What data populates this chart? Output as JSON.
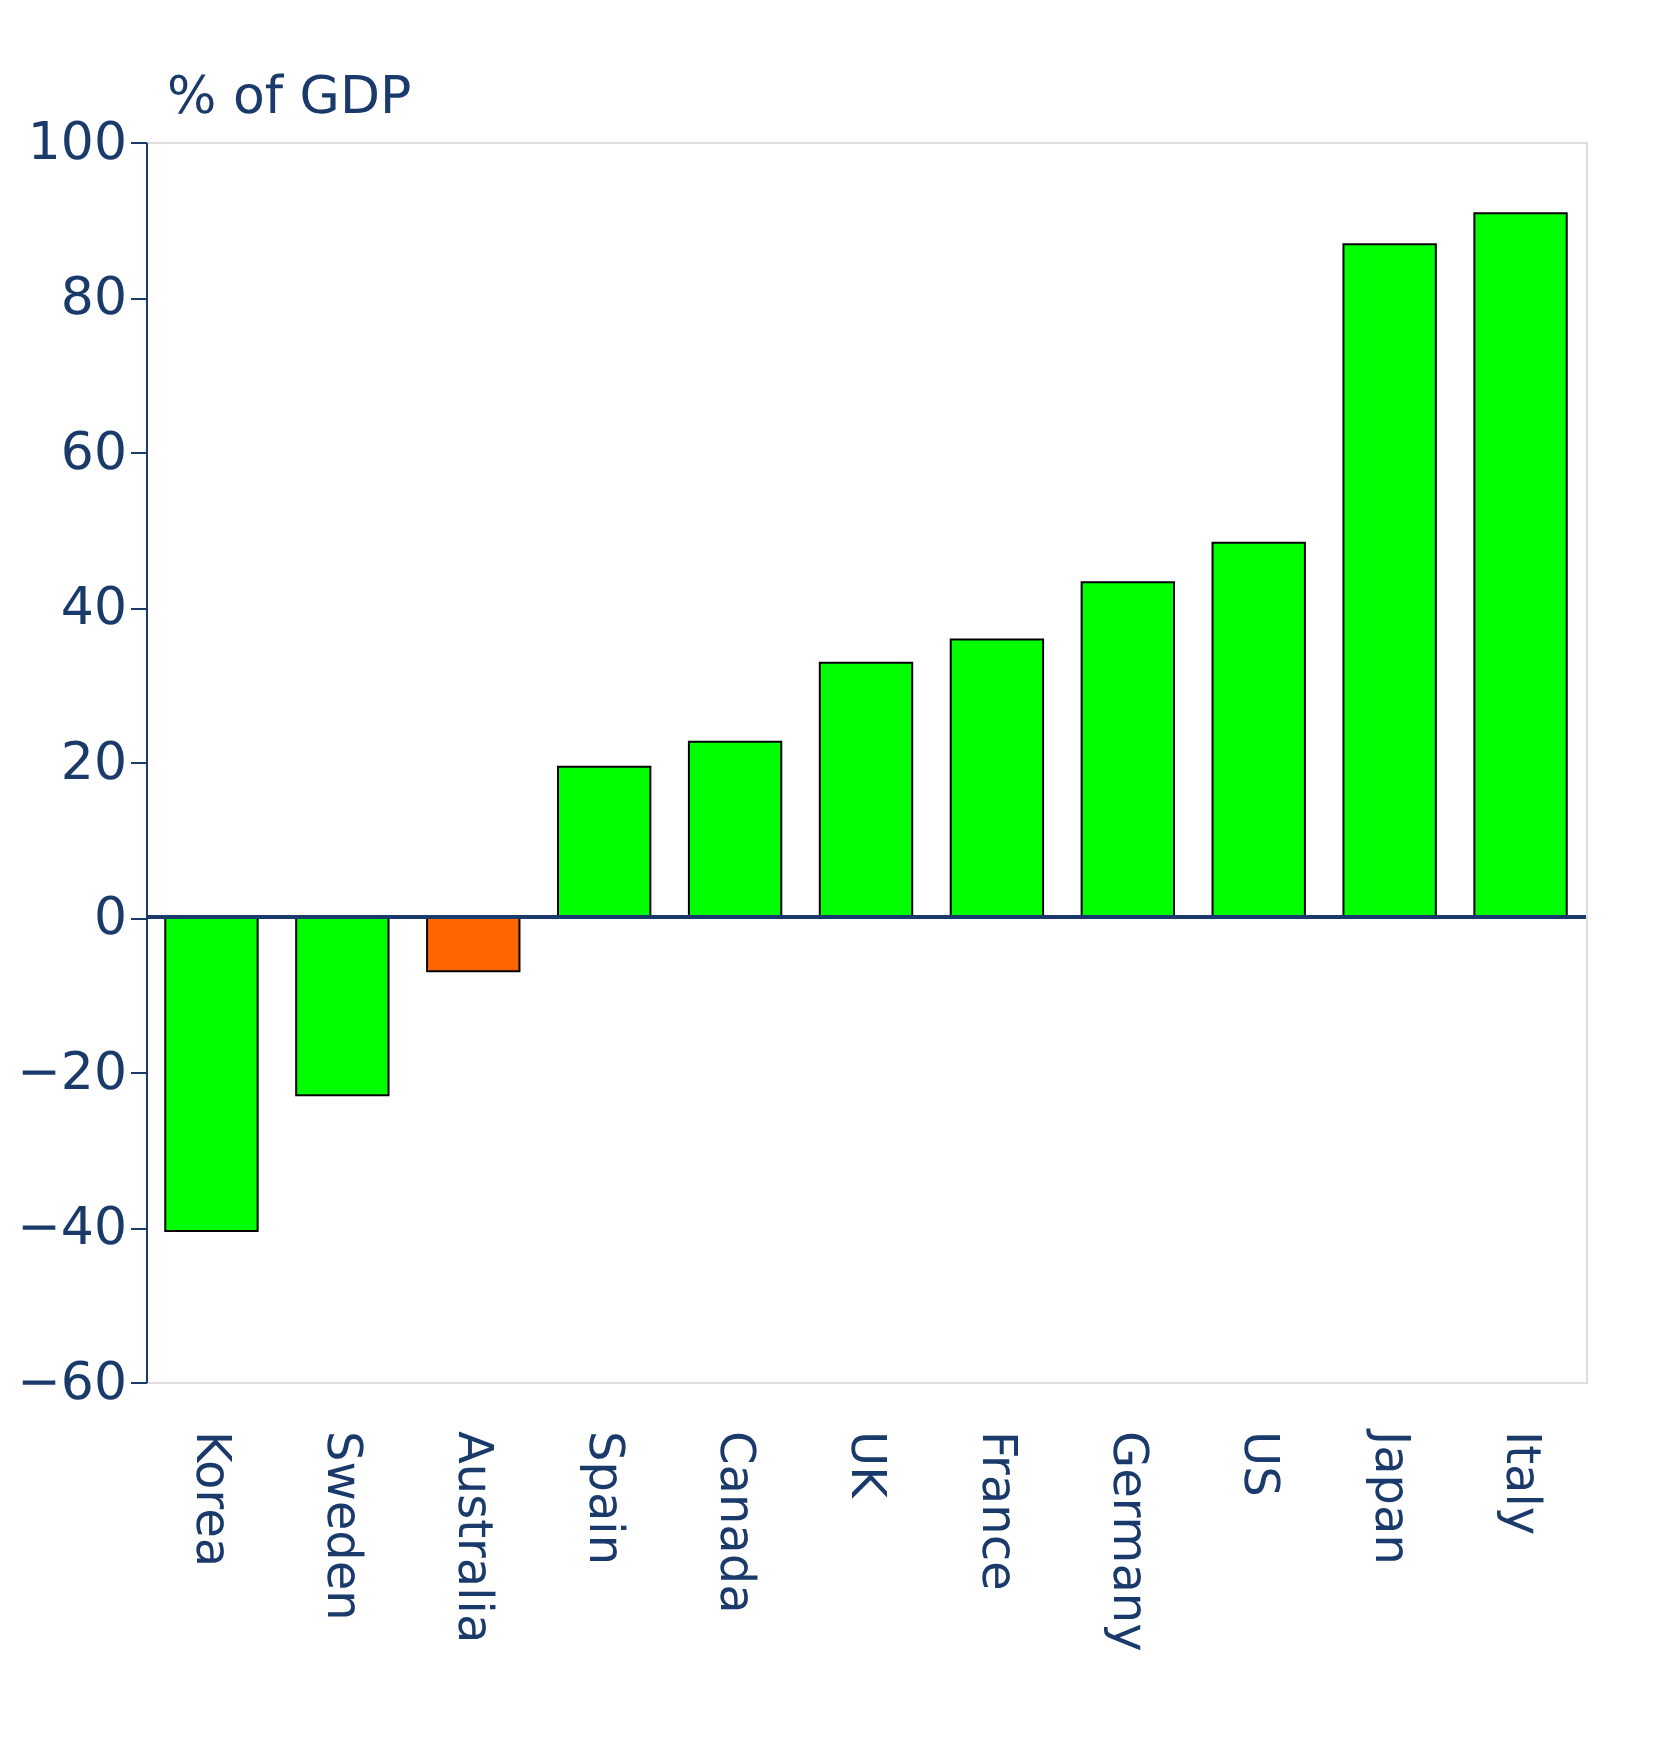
{
  "chart_data": {
    "type": "bar",
    "ylabel": "% of GDP",
    "categories": [
      "Korea",
      "Sweden",
      "Australia",
      "Spain",
      "Canada",
      "UK",
      "France",
      "Germany",
      "US",
      "Japan",
      "Italy"
    ],
    "values": [
      -40.5,
      -23,
      -7,
      19.4,
      22.6,
      32.8,
      35.8,
      43.2,
      48.3,
      86.8,
      90.8
    ],
    "colors": [
      "#00ff00",
      "#00ff00",
      "#ff6600",
      "#00ff00",
      "#00ff00",
      "#00ff00",
      "#00ff00",
      "#00ff00",
      "#00ff00",
      "#00ff00",
      "#00ff00"
    ],
    "ylim": [
      -60,
      100
    ],
    "yticks": [
      -60,
      -40,
      -20,
      0,
      20,
      40,
      60,
      80,
      100
    ],
    "grid": false,
    "ref_lines": [
      {
        "axis": "y",
        "value": 0
      }
    ]
  }
}
